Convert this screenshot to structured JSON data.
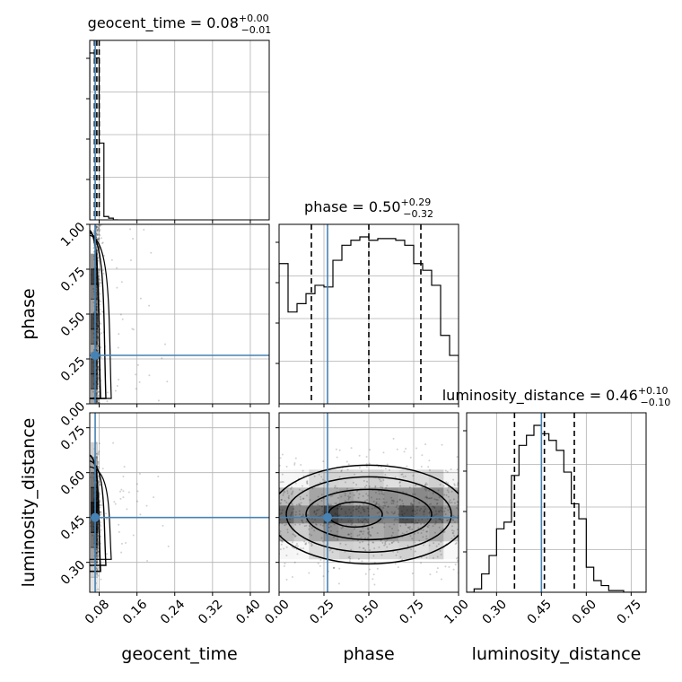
{
  "chart_data": {
    "type": "corner",
    "parameters": [
      "geocent_time",
      "phase",
      "luminosity_distance"
    ],
    "titles": {
      "geocent_time": {
        "prefix": "geocent_time = 0.08",
        "sup": "+0.00",
        "sub": "−0.01"
      },
      "phase": {
        "prefix": "phase = 0.50",
        "sup": "+0.29",
        "sub": "−0.32"
      },
      "luminosity_distance": {
        "prefix": "luminosity_distance = 0.46",
        "sup": "+0.10",
        "sub": "−0.10"
      }
    },
    "ranges": {
      "geocent_time": [
        0.06,
        0.44
      ],
      "phase": [
        0.0,
        1.0
      ],
      "luminosity_distance": [
        0.2,
        0.8
      ]
    },
    "ticks": {
      "geocent_time": [
        "0.08",
        "0.16",
        "0.24",
        "0.32",
        "0.40"
      ],
      "phase": [
        "0.00",
        "0.25",
        "0.50",
        "0.75",
        "1.00"
      ],
      "luminosity_distance": [
        "0.30",
        "0.45",
        "0.60",
        "0.75"
      ]
    },
    "truths": {
      "geocent_time": 0.0715,
      "phase": 0.27,
      "luminosity_distance": 0.45
    },
    "quantiles": {
      "geocent_time": [
        0.07,
        0.075,
        0.08
      ],
      "phase": [
        0.18,
        0.5,
        0.79
      ],
      "luminosity_distance": [
        0.36,
        0.46,
        0.56
      ]
    },
    "histograms": {
      "geocent_time": {
        "edges": [
          0.06,
          0.07,
          0.08,
          0.09,
          0.1,
          0.11,
          0.12
        ],
        "counts": [
          1.0,
          0.97,
          0.46,
          0.02,
          0.01,
          0.0
        ]
      },
      "phase": {
        "edges": [
          0.0,
          0.05,
          0.1,
          0.15,
          0.2,
          0.25,
          0.3,
          0.35,
          0.4,
          0.45,
          0.5,
          0.55,
          0.6,
          0.65,
          0.7,
          0.75,
          0.8,
          0.85,
          0.9,
          0.95,
          1.0
        ],
        "counts": [
          0.84,
          0.55,
          0.6,
          0.66,
          0.71,
          0.7,
          0.86,
          0.95,
          0.98,
          1.0,
          0.98,
          0.99,
          0.99,
          0.98,
          0.95,
          0.84,
          0.8,
          0.71,
          0.41,
          0.29
        ]
      },
      "luminosity_distance": {
        "edges": [
          0.2,
          0.225,
          0.25,
          0.275,
          0.3,
          0.325,
          0.35,
          0.375,
          0.4,
          0.425,
          0.45,
          0.475,
          0.5,
          0.525,
          0.55,
          0.575,
          0.6,
          0.625,
          0.65,
          0.675,
          0.7,
          0.725,
          0.75,
          0.775,
          0.8
        ],
        "counts": [
          0.0,
          0.02,
          0.11,
          0.22,
          0.38,
          0.42,
          0.7,
          0.88,
          0.94,
          1.0,
          0.95,
          0.91,
          0.85,
          0.72,
          0.53,
          0.44,
          0.15,
          0.07,
          0.04,
          0.01,
          0.01,
          0.0,
          0.0,
          0.0
        ]
      }
    },
    "axis_labels": {
      "x": [
        "geocent_time",
        "phase",
        "luminosity_distance"
      ],
      "y": [
        "phase",
        "luminosity_distance"
      ]
    },
    "colors": {
      "truth": "#4682b4",
      "hist": "#000000",
      "grid": "#b0b0b0"
    },
    "grid": true
  }
}
